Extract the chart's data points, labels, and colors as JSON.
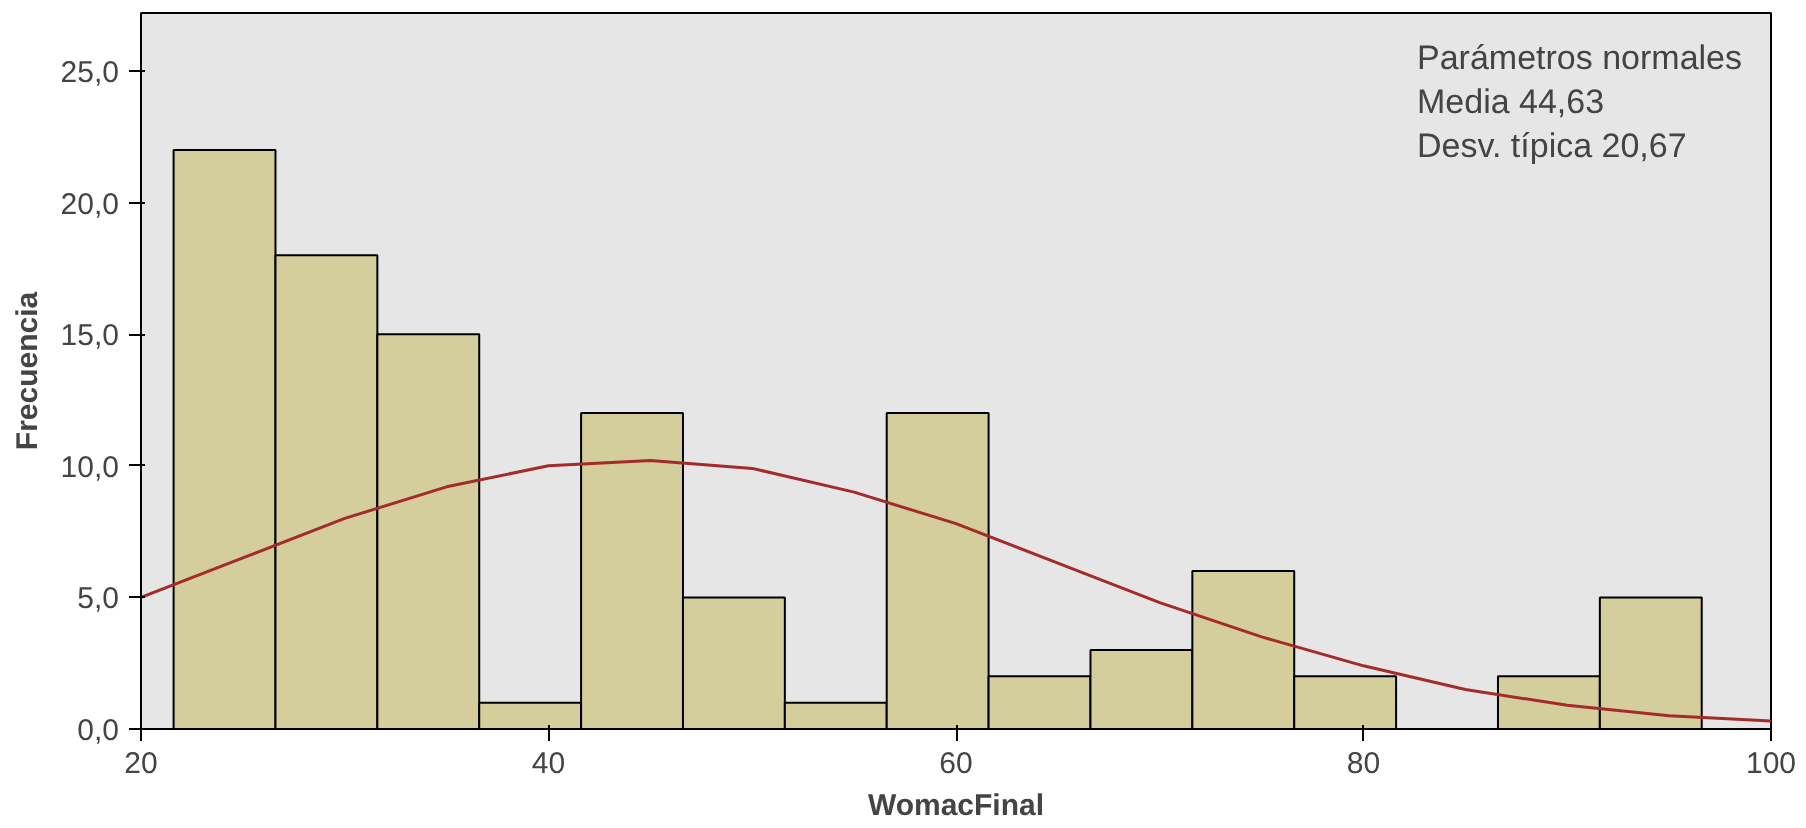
{
  "chart_data": {
    "type": "histogram",
    "xlabel": "WomacFinal",
    "ylabel": "Frecuencia",
    "annotations": [
      "Parámetros normales",
      "Media 44,63",
      "Desv. típica 20,67"
    ],
    "xlim": [
      20,
      100
    ],
    "ylim": [
      0,
      27.2
    ],
    "xticks": [
      20,
      40,
      60,
      80,
      100
    ],
    "yticks": [
      {
        "value": 0,
        "label": "0,0"
      },
      {
        "value": 5,
        "label": "5,0"
      },
      {
        "value": 10,
        "label": "10,0"
      },
      {
        "value": 15,
        "label": "15,0"
      },
      {
        "value": 20,
        "label": "20,0"
      },
      {
        "value": 25,
        "label": "25,0"
      }
    ],
    "grid": false,
    "series": [
      {
        "type": "histogram",
        "color": "#d3ce9b",
        "bins": [
          21.6,
          26.6,
          31.6,
          36.6,
          41.6,
          46.6,
          51.6,
          56.6,
          61.6,
          66.6,
          71.6,
          76.6,
          81.6,
          86.6,
          91.6,
          96.6
        ],
        "values": [
          22,
          18,
          15,
          1,
          12,
          5,
          1,
          12,
          2,
          3,
          6,
          2,
          0,
          2,
          5
        ]
      },
      {
        "type": "line",
        "color": "#a52a2a",
        "x": [
          20,
          25,
          30,
          35,
          40,
          45,
          50,
          55,
          60,
          65,
          70,
          75,
          80,
          85,
          90,
          95,
          100
        ],
        "values": [
          5.0,
          6.5,
          8.0,
          9.2,
          10.0,
          10.2,
          9.9,
          9.0,
          7.8,
          6.3,
          4.8,
          3.5,
          2.4,
          1.5,
          0.9,
          0.5,
          0.3
        ]
      }
    ]
  }
}
